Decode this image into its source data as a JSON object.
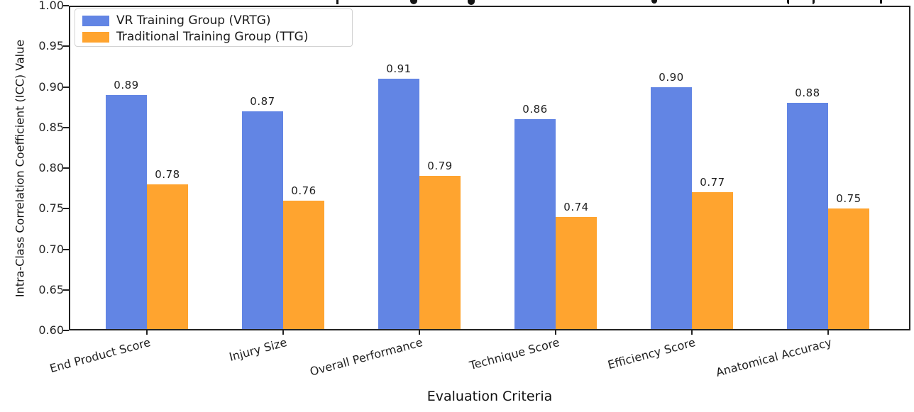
{
  "chart_data": {
    "type": "bar",
    "title": "",
    "title_note": "title cropped out of view at top edge",
    "categories": [
      "End Product Score",
      "Injury Size",
      "Overall Performance",
      "Technique Score",
      "Efficiency Score",
      "Anatomical Accuracy"
    ],
    "series": [
      {
        "name": "VR Training Group (VRTG)",
        "color": "#6285E4",
        "values": [
          0.89,
          0.87,
          0.91,
          0.86,
          0.9,
          0.88
        ]
      },
      {
        "name": "Traditional Training Group (TTG)",
        "color": "#FFA42F",
        "values": [
          0.78,
          0.76,
          0.79,
          0.74,
          0.77,
          0.75
        ]
      }
    ],
    "xlabel": "Evaluation Criteria",
    "ylabel": "Intra-Class Correlation Coefficient (ICC) Value",
    "ylim": [
      0.6,
      1.0
    ],
    "yticks": [
      "1.00",
      "0.95",
      "0.90",
      "0.85",
      "0.80",
      "0.75",
      "0.70",
      "0.65",
      "0.60"
    ],
    "bar_value_labels": true,
    "legend_position": "upper left",
    "grid": false,
    "axis_color": "#222222",
    "background": "#ffffff"
  }
}
